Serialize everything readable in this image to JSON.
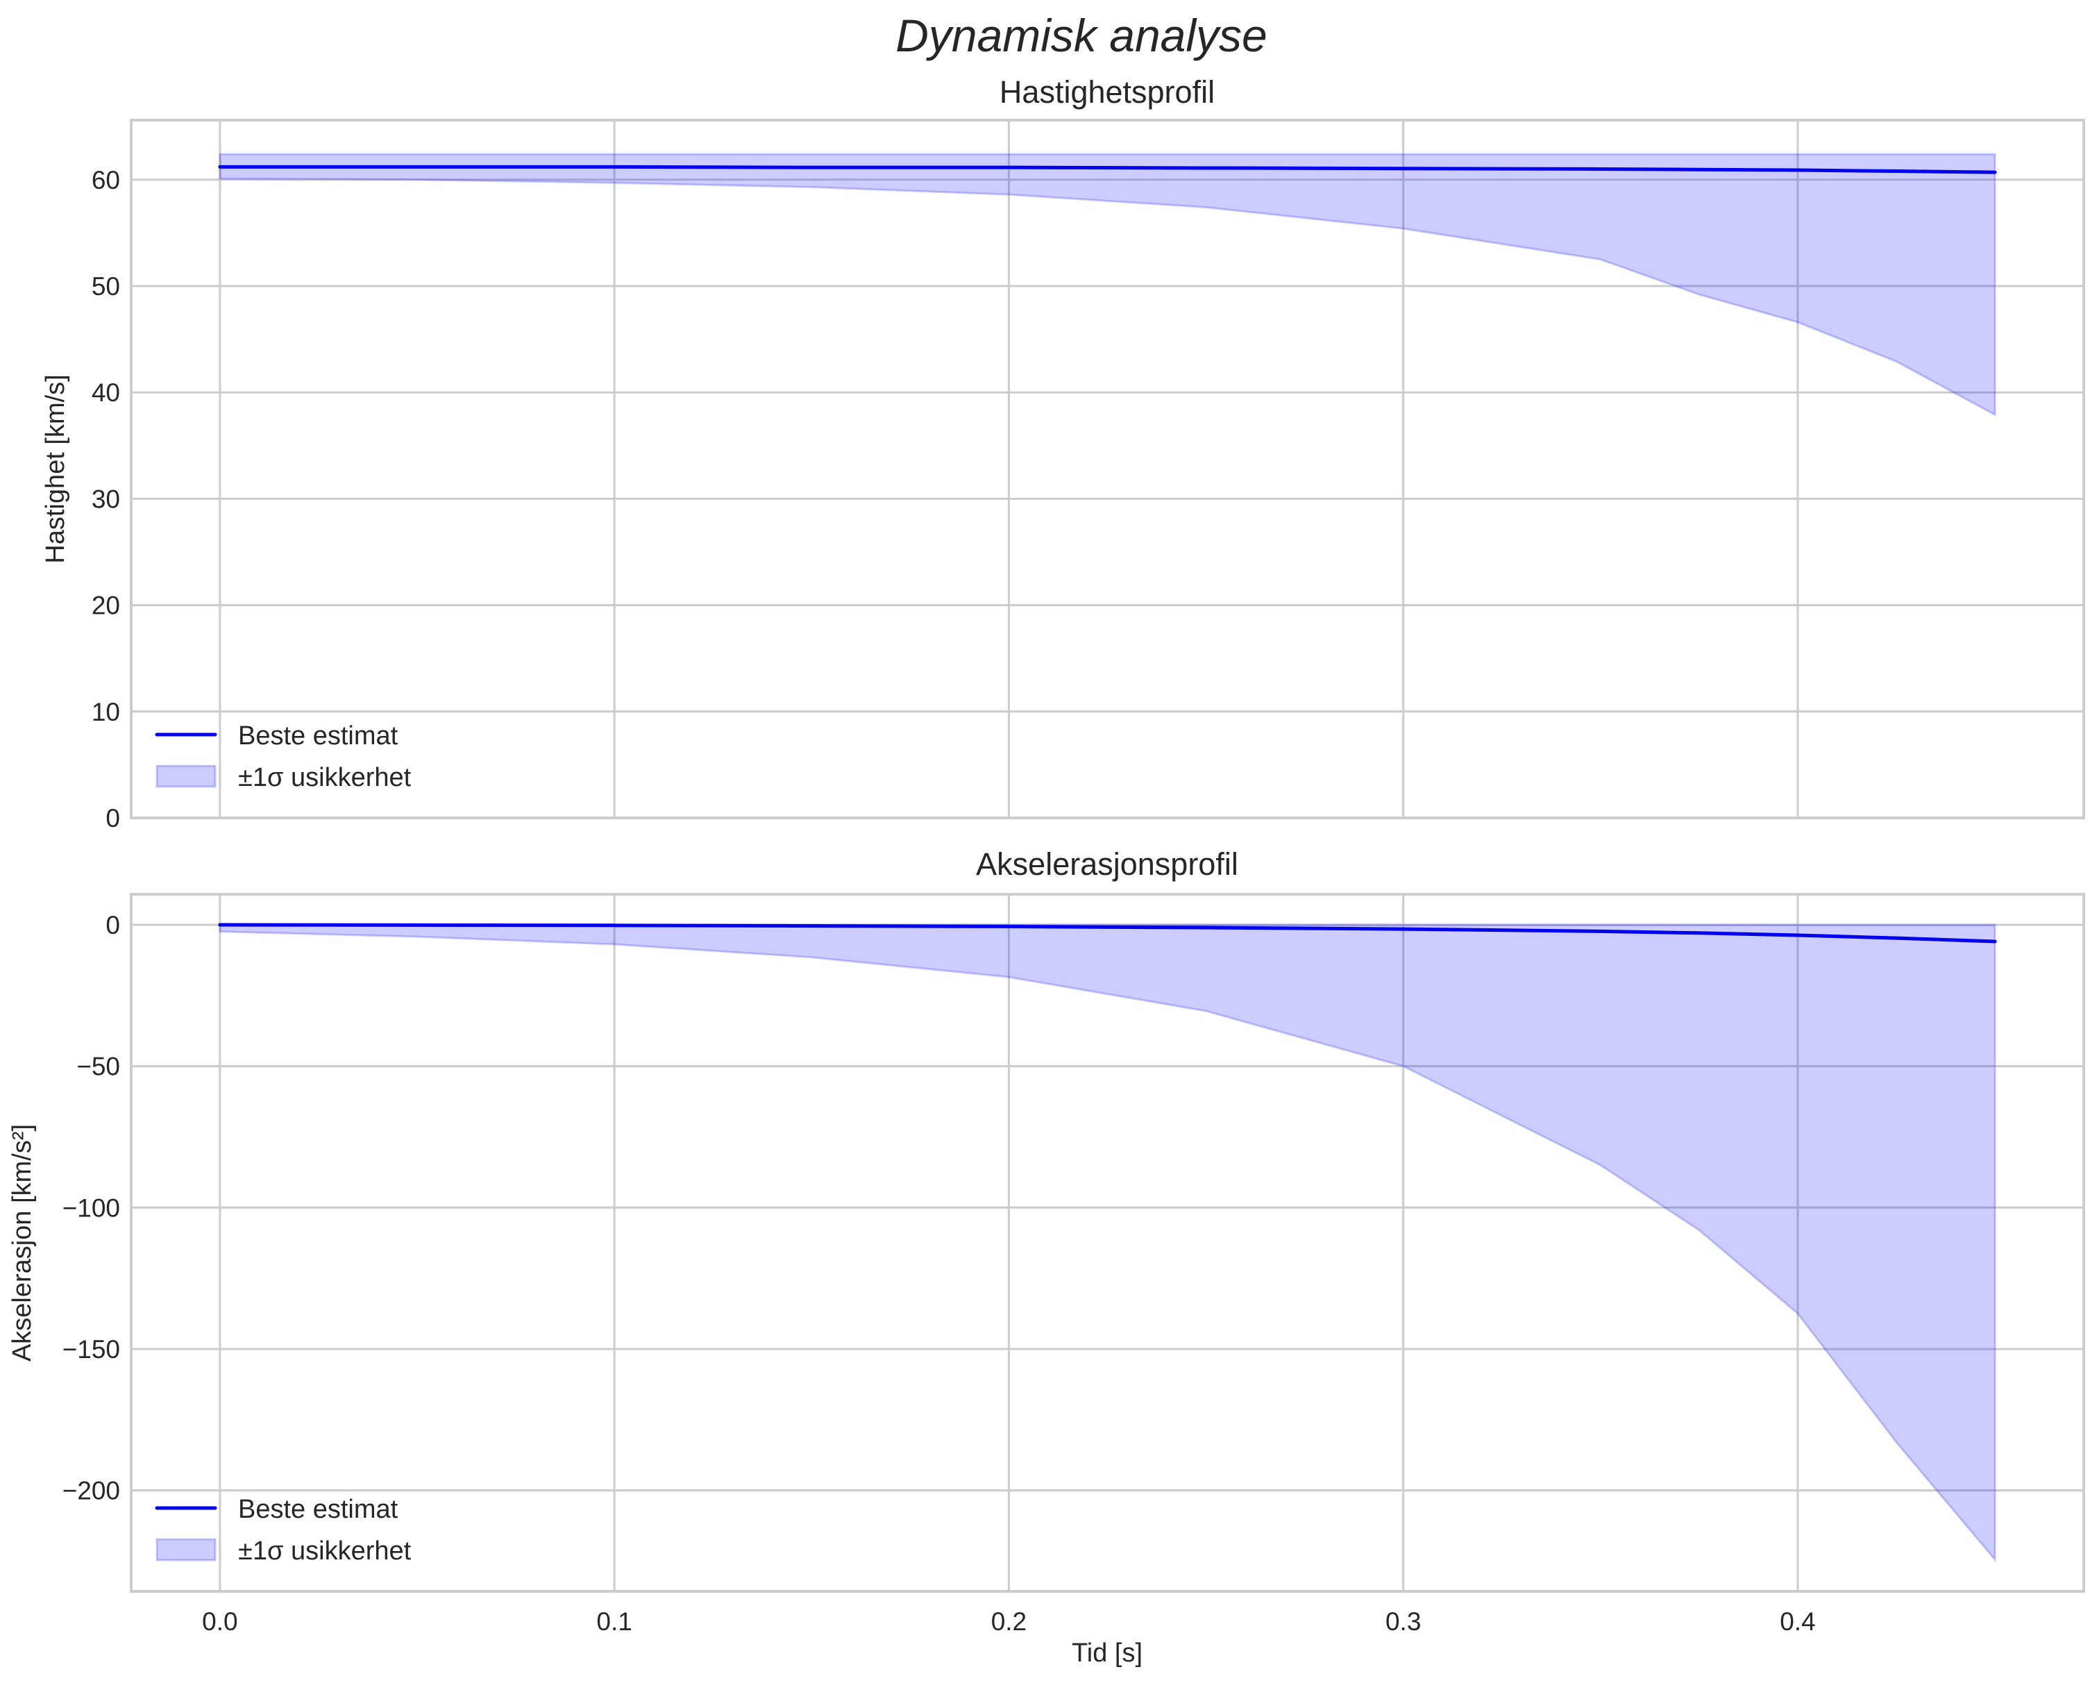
{
  "figure": {
    "suptitle": "Dynamisk analyse",
    "xlabel": "Tid [s]"
  },
  "colors": {
    "line": "#0000ee",
    "band_fill": "#0000ff",
    "band_alpha": 0.2,
    "grid": "#cccccc",
    "text": "#262626"
  },
  "legend": {
    "line_label": "Beste estimat",
    "band_label": "±1σ usikkerhet"
  },
  "chart_data": [
    {
      "type": "line",
      "title": "Hastighetsprofil",
      "xlabel": "",
      "ylabel": "Hastighet [km/s]",
      "xlim": [
        -0.0225,
        0.4725
      ],
      "ylim": [
        0,
        65.6
      ],
      "xticks": [
        0.0,
        0.1,
        0.2,
        0.3,
        0.4
      ],
      "xticklabels": [
        "",
        "",
        "",
        "",
        ""
      ],
      "yticks": [
        0,
        10,
        20,
        30,
        40,
        50,
        60
      ],
      "yticklabels": [
        "0",
        "10",
        "20",
        "30",
        "40",
        "50",
        "60"
      ],
      "grid": true,
      "legend_position": "lower left",
      "x": [
        0.0,
        0.05,
        0.1,
        0.15,
        0.2,
        0.25,
        0.3,
        0.35,
        0.375,
        0.4,
        0.425,
        0.45
      ],
      "series": [
        {
          "name": "Beste estimat",
          "kind": "line",
          "values": [
            61.2,
            61.2,
            61.2,
            61.15,
            61.15,
            61.1,
            61.05,
            61.0,
            60.95,
            60.9,
            60.8,
            60.7
          ]
        },
        {
          "name": "±1σ usikkerhet (øvre)",
          "kind": "band_upper",
          "values": [
            62.4,
            62.4,
            62.4,
            62.4,
            62.4,
            62.4,
            62.4,
            62.4,
            62.4,
            62.4,
            62.4,
            62.4
          ]
        },
        {
          "name": "±1σ usikkerhet (nedre)",
          "kind": "band_lower",
          "values": [
            60.1,
            60.0,
            59.7,
            59.3,
            58.6,
            57.4,
            55.4,
            52.5,
            49.2,
            46.6,
            42.9,
            37.9
          ]
        }
      ]
    },
    {
      "type": "line",
      "title": "Akselerasjonsprofil",
      "xlabel": "Tid [s]",
      "ylabel": "Akselerasjon [km/s²]",
      "xlim": [
        -0.0225,
        0.4725
      ],
      "ylim": [
        -235.7,
        10.8
      ],
      "xticks": [
        0.0,
        0.1,
        0.2,
        0.3,
        0.4
      ],
      "xticklabels": [
        "0.0",
        "0.1",
        "0.2",
        "0.3",
        "0.4"
      ],
      "yticks": [
        0,
        -50,
        -100,
        -150,
        -200
      ],
      "yticklabels": [
        "0",
        "−50",
        "−100",
        "−150",
        "−200"
      ],
      "grid": true,
      "legend_position": "lower left",
      "x": [
        0.0,
        0.05,
        0.1,
        0.15,
        0.2,
        0.25,
        0.3,
        0.35,
        0.375,
        0.4,
        0.425,
        0.45
      ],
      "series": [
        {
          "name": "Beste estimat",
          "kind": "line",
          "values": [
            0.0,
            -0.1,
            -0.2,
            -0.4,
            -0.6,
            -1.0,
            -1.5,
            -2.3,
            -2.9,
            -3.7,
            -4.7,
            -5.9
          ]
        },
        {
          "name": "±1σ usikkerhet (øvre)",
          "kind": "band_upper",
          "values": [
            0,
            0,
            0,
            0,
            0,
            0,
            0,
            0,
            0,
            0,
            0,
            0
          ]
        },
        {
          "name": "±1σ usikkerhet (nedre)",
          "kind": "band_lower",
          "values": [
            -2.4,
            -4.2,
            -6.9,
            -11.5,
            -18.5,
            -30.5,
            -50.0,
            -85.0,
            -108.0,
            -137.5,
            -183.0,
            -224.5
          ]
        }
      ]
    }
  ]
}
